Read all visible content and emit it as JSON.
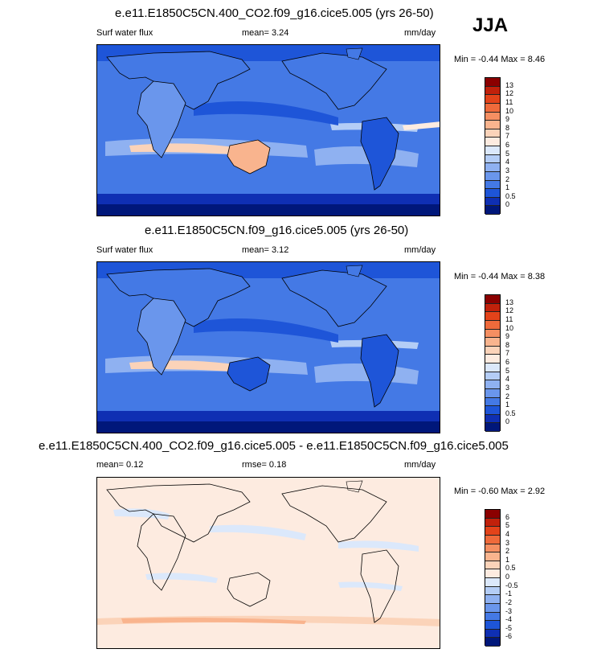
{
  "season": "JJA",
  "panels": [
    {
      "title": "e.e11.E1850C5CN.400_CO2.f09_g16.cice5.005 (yrs 26-50)",
      "left_label": "Surf water flux",
      "mid_label": "mean=  3.24",
      "units": "mm/day",
      "minmax": "Min =  -0.44 Max =  8.46",
      "levels": [
        "13",
        "12",
        "11",
        "10",
        "9",
        "8",
        "7",
        "6",
        "5",
        "4",
        "3",
        "2",
        "1",
        "0.5",
        "0"
      ],
      "colors": [
        "#8b0000",
        "#c1210b",
        "#e3431a",
        "#ef6a3b",
        "#f58f62",
        "#f9b48e",
        "#fbd3b9",
        "#fdebe0",
        "#dbe8fb",
        "#b4cdf6",
        "#8fb1f1",
        "#6a96ec",
        "#4479e5",
        "#1e55d8",
        "#0f2fb3",
        "#00177a"
      ]
    },
    {
      "title": "e.e11.E1850C5CN.f09_g16.cice5.005 (yrs 26-50)",
      "left_label": "Surf water flux",
      "mid_label": "mean=  3.12",
      "units": "mm/day",
      "minmax": "Min =  -0.44 Max =  8.38",
      "levels": [
        "13",
        "12",
        "11",
        "10",
        "9",
        "8",
        "7",
        "6",
        "5",
        "4",
        "3",
        "2",
        "1",
        "0.5",
        "0"
      ],
      "colors": [
        "#8b0000",
        "#c1210b",
        "#e3431a",
        "#ef6a3b",
        "#f58f62",
        "#f9b48e",
        "#fbd3b9",
        "#fdebe0",
        "#dbe8fb",
        "#b4cdf6",
        "#8fb1f1",
        "#6a96ec",
        "#4479e5",
        "#1e55d8",
        "#0f2fb3",
        "#00177a"
      ]
    },
    {
      "title": "e.e11.E1850C5CN.400_CO2.f09_g16.cice5.005 - e.e11.E1850C5CN.f09_g16.cice5.005",
      "left_label": "mean=  0.12",
      "mid_label": "rmse=  0.18",
      "units": "mm/day",
      "minmax": "Min =  -0.60 Max =  2.92",
      "levels": [
        "6",
        "5",
        "4",
        "3",
        "2",
        "1",
        "0.5",
        "0",
        "-0.5",
        "-1",
        "-2",
        "-3",
        "-4",
        "-5",
        "-6"
      ],
      "colors": [
        "#8b0000",
        "#c1210b",
        "#e3431a",
        "#ef6a3b",
        "#f58f62",
        "#f9b48e",
        "#fbd3b9",
        "#fdebe0",
        "#dbe8fb",
        "#b4cdf6",
        "#8fb1f1",
        "#6a96ec",
        "#4479e5",
        "#1e55d8",
        "#0f2fb3",
        "#00177a"
      ]
    }
  ]
}
